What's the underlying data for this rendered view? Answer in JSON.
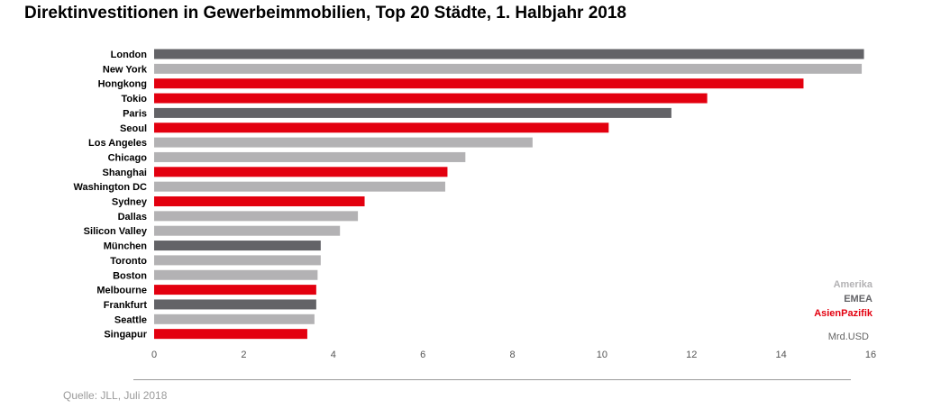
{
  "chart_data": {
    "type": "bar",
    "orientation": "horizontal",
    "title": "Direktinvestitionen in Gewerbeimmobilien, Top 20 Städte, 1. Halbjahr 2018",
    "unit": "Mrd.USD",
    "xlim": [
      0,
      16
    ],
    "xticks": [
      0,
      2,
      4,
      6,
      8,
      10,
      12,
      14,
      16
    ],
    "grid": false,
    "legend_position": "bottom-right",
    "legend": [
      {
        "name": "Amerika",
        "color": "#b3b2b4"
      },
      {
        "name": "EMEA",
        "color": "#636367"
      },
      {
        "name": "AsienPazifik",
        "color": "#e3000f"
      }
    ],
    "categories": [
      "London",
      "New York",
      "Hongkong",
      "Tokio",
      "Paris",
      "Seoul",
      "Los Angeles",
      "Chicago",
      "Shanghai",
      "Washington DC",
      "Sydney",
      "Dallas",
      "Silicon Valley",
      "München",
      "Toronto",
      "Boston",
      "Melbourne",
      "Frankfurt",
      "Seattle",
      "Singapur"
    ],
    "values": [
      15.85,
      15.8,
      14.5,
      12.35,
      11.55,
      10.15,
      8.45,
      6.95,
      6.55,
      6.5,
      4.7,
      4.55,
      4.15,
      3.72,
      3.72,
      3.65,
      3.62,
      3.62,
      3.58,
      3.42
    ],
    "regions": [
      "EMEA",
      "Amerika",
      "AsienPazifik",
      "AsienPazifik",
      "EMEA",
      "AsienPazifik",
      "Amerika",
      "Amerika",
      "AsienPazifik",
      "Amerika",
      "AsienPazifik",
      "Amerika",
      "Amerika",
      "EMEA",
      "Amerika",
      "Amerika",
      "AsienPazifik",
      "EMEA",
      "Amerika",
      "AsienPazifik"
    ]
  },
  "source": "Quelle: JLL, Juli 2018"
}
